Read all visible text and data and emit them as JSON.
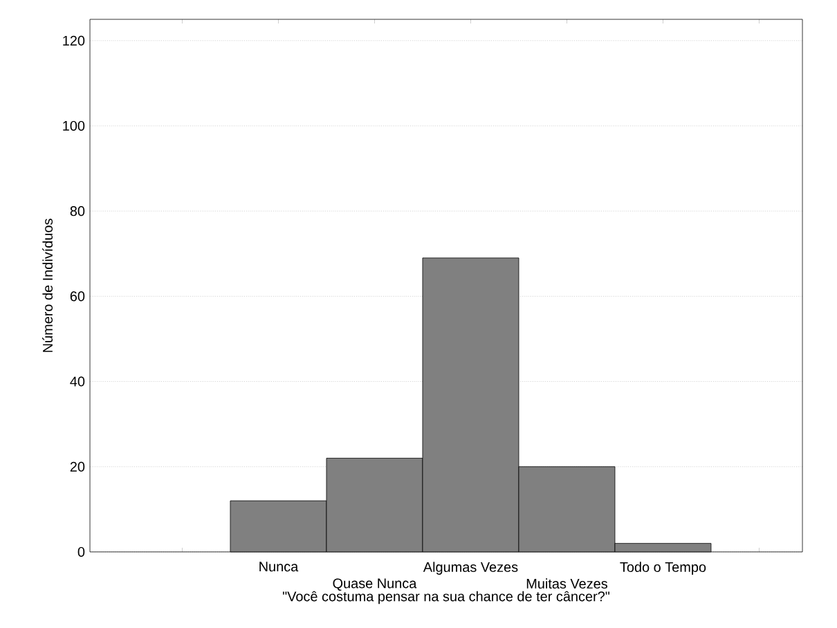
{
  "chart_data": {
    "type": "bar",
    "xlabel": "\"Você costuma pensar na sua chance de ter câncer?\"",
    "ylabel": "Número de Indivíduos",
    "categories": [
      null,
      "Nunca",
      "Quase Nunca",
      "Algumas Vezes",
      "Muitas Vezes",
      "Todo o Tempo",
      null
    ],
    "values": [
      null,
      12,
      22,
      69,
      20,
      2,
      null
    ],
    "color": "#808080",
    "ylim": [
      0,
      125
    ],
    "yticks": [
      0,
      20,
      40,
      60,
      80,
      100,
      120
    ],
    "grid": "y",
    "legend": false
  }
}
